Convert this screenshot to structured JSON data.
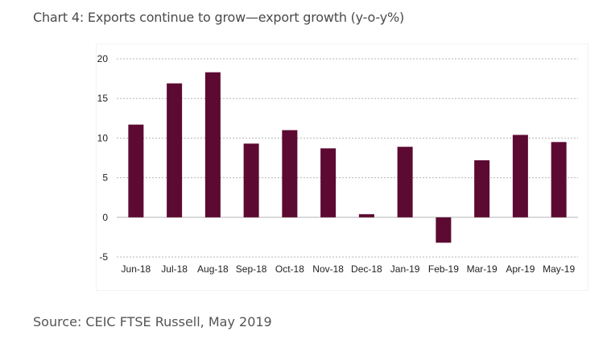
{
  "title": "Chart 4: Exports continue to grow—export growth (y-o-y%)",
  "source": "Source: CEIC FTSE Russell, May 2019",
  "colors": {
    "bar": "#5c0a31",
    "grid": "#b5b5b5",
    "text": "#222222"
  },
  "chart_data": {
    "type": "bar",
    "categories": [
      "Jun-18",
      "Jul-18",
      "Aug-18",
      "Sep-18",
      "Oct-18",
      "Nov-18",
      "Dec-18",
      "Jan-19",
      "Feb-19",
      "Mar-19",
      "Apr-19",
      "May-19"
    ],
    "values": [
      11.7,
      16.9,
      18.3,
      9.3,
      11.0,
      8.7,
      0.4,
      8.9,
      -3.2,
      7.2,
      10.4,
      9.5
    ],
    "ylim": [
      -5,
      20
    ],
    "yticks": [
      "-5",
      "0",
      "5",
      "10",
      "15",
      "20"
    ],
    "grid": true,
    "legend": "none"
  }
}
